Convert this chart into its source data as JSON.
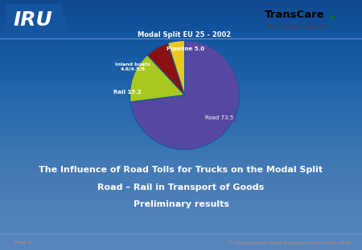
{
  "title": "Modal Split EU 25 - 2002",
  "slices": [
    {
      "label": "Road 73.5",
      "value": 73.5,
      "color": "#5548a0"
    },
    {
      "label": "Rail 15.2",
      "value": 15.2,
      "color": "#a8c820"
    },
    {
      "label": "Inland boats\n4.6/4.5/8",
      "value": 7.0,
      "color": "#8b1010"
    },
    {
      "label": "Pipeline 5.0",
      "value": 5.0,
      "color": "#e8c820"
    }
  ],
  "background_color": "#1555a0",
  "bg_gradient_top": "#0a2060",
  "title_bg_color": "#101060",
  "title_text_color": "#ffffff",
  "main_text_line1": "The Influence of Road Tolls for Trucks on the Modal Split",
  "main_text_line2": "Road – Rail in Transport of Goods",
  "main_text_line3": "Preliminary results",
  "footer_left": "Page 1",
  "footer_right": "© International Road Transport Union (IRU) 2008",
  "separator_color": "#6090cc"
}
